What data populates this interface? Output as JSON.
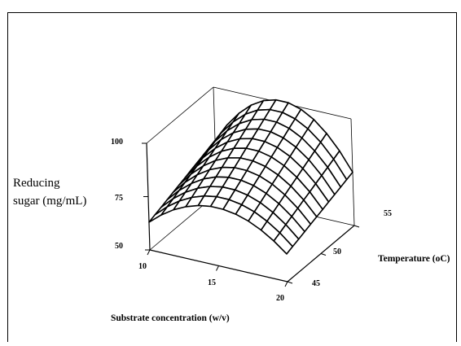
{
  "chart_data": {
    "type": "surface3d",
    "title": "",
    "xlabel": "Substrate concentration (w/v)",
    "ylabel": "Temperature (oC)",
    "zlabel": [
      "Reducing",
      "sugar (mg/mL)"
    ],
    "x_ticks": [
      "10",
      "15",
      "20"
    ],
    "y_ticks": [
      "45",
      "50",
      "55"
    ],
    "z_ticks": [
      "50",
      "75",
      "100"
    ],
    "xlim": [
      10,
      20
    ],
    "ylim": [
      45,
      55
    ],
    "zlim": [
      50,
      100
    ],
    "grid_size": 11,
    "surface": {
      "z_at_x_min_y_min": 63,
      "z_at_x_max_y_min": 63,
      "z_at_x_min_y_max": 75,
      "z_at_x_max_y_max": 75,
      "z_peak": 101
    }
  }
}
